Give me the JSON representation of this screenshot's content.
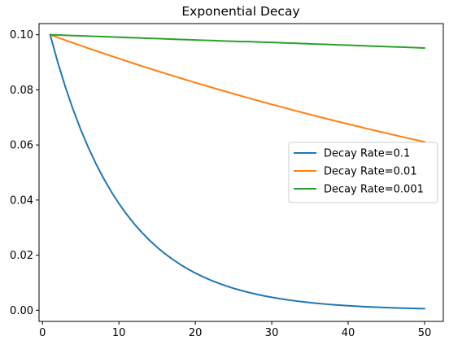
{
  "chart_data": {
    "type": "line",
    "title": "Exponential Decay",
    "xlabel": "",
    "ylabel": "",
    "xlim": [
      -0.45,
      52.45
    ],
    "ylim": [
      -0.00404,
      0.10404
    ],
    "xticks": [
      0,
      10,
      20,
      30,
      40,
      50
    ],
    "xtick_labels": [
      "0",
      "10",
      "20",
      "30",
      "40",
      "50"
    ],
    "yticks": [
      0.0,
      0.02,
      0.04,
      0.06,
      0.08,
      0.1
    ],
    "ytick_labels": [
      "0.00",
      "0.02",
      "0.04",
      "0.06",
      "0.08",
      "0.10"
    ],
    "grid": false,
    "legend_position": "center-right",
    "x": [
      1,
      2,
      3,
      4,
      5,
      6,
      7,
      8,
      9,
      10,
      11,
      12,
      13,
      14,
      15,
      16,
      17,
      18,
      19,
      20,
      21,
      22,
      23,
      24,
      25,
      26,
      27,
      28,
      29,
      30,
      31,
      32,
      33,
      34,
      35,
      36,
      37,
      38,
      39,
      40,
      41,
      42,
      43,
      44,
      45,
      46,
      47,
      48,
      49,
      50
    ],
    "series": [
      {
        "name": "Decay Rate=0.1",
        "color": "#1f77b4",
        "values": [
          0.1,
          0.09,
          0.081,
          0.0729,
          0.06561,
          0.059049,
          0.053144,
          0.04783,
          0.043047,
          0.038742,
          0.034868,
          0.031381,
          0.028243,
          0.025419,
          0.022877,
          0.020589,
          0.01853,
          0.016677,
          0.015009,
          0.013509,
          0.012158,
          0.010942,
          0.009848,
          0.008863,
          0.007977,
          0.007179,
          0.006461,
          0.005815,
          0.005233,
          0.00471,
          0.004239,
          0.003815,
          0.003434,
          0.00309,
          0.002781,
          0.002503,
          0.002253,
          0.002028,
          0.001825,
          0.001642,
          0.001478,
          0.00133,
          0.001197,
          0.001078,
          0.00097,
          0.000873,
          0.000786,
          0.000707,
          0.000636,
          0.000573
        ]
      },
      {
        "name": "Decay Rate=0.01",
        "color": "#ff7f0e",
        "values": [
          0.1,
          0.099,
          0.09801,
          0.09703,
          0.09606,
          0.095099,
          0.094148,
          0.093207,
          0.092274,
          0.091352,
          0.090438,
          0.089534,
          0.088638,
          0.087752,
          0.086875,
          0.086006,
          0.085146,
          0.084294,
          0.083451,
          0.082617,
          0.081791,
          0.080973,
          0.080163,
          0.079361,
          0.078568,
          0.077782,
          0.077004,
          0.076234,
          0.075472,
          0.074717,
          0.07397,
          0.07323,
          0.072498,
          0.071773,
          0.071055,
          0.070345,
          0.069641,
          0.068945,
          0.068255,
          0.067573,
          0.066897,
          0.066228,
          0.065566,
          0.06491,
          0.064261,
          0.063619,
          0.062982,
          0.062353,
          0.061729,
          0.061112
        ]
      },
      {
        "name": "Decay Rate=0.001",
        "color": "#2ca02c",
        "values": [
          0.1,
          0.0999,
          0.0998,
          0.0997,
          0.0996,
          0.0995,
          0.0994,
          0.0993,
          0.0992,
          0.0991,
          0.099,
          0.0989,
          0.0988,
          0.0987,
          0.0986,
          0.0985,
          0.0984,
          0.0983,
          0.0982,
          0.0981,
          0.098,
          0.0979,
          0.0978,
          0.0977,
          0.0976,
          0.0975,
          0.0975,
          0.0974,
          0.0973,
          0.0972,
          0.0971,
          0.097,
          0.0969,
          0.0968,
          0.0967,
          0.0966,
          0.0965,
          0.0964,
          0.0963,
          0.0962,
          0.0961,
          0.096,
          0.0959,
          0.0958,
          0.0957,
          0.0956,
          0.0955,
          0.0954,
          0.0953,
          0.0952
        ]
      }
    ]
  }
}
